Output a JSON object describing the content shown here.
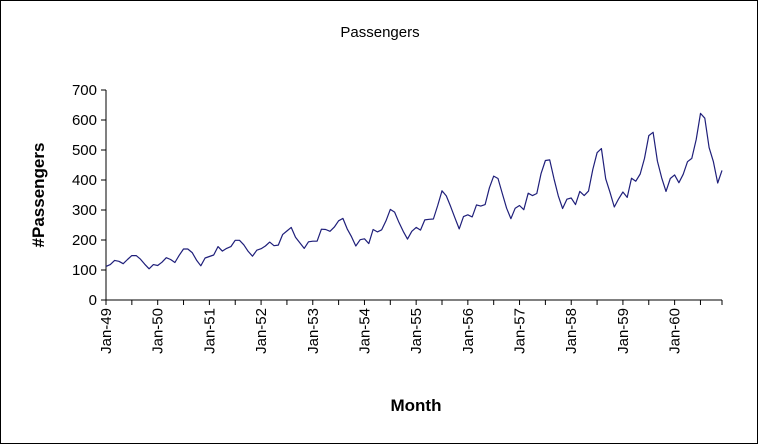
{
  "chart_data": {
    "type": "line",
    "title": "Passengers",
    "xlabel": "Month",
    "ylabel": "#Passengers",
    "ylim": [
      0,
      700
    ],
    "yticks": [
      0,
      100,
      200,
      300,
      400,
      500,
      600,
      700
    ],
    "xtick_labels": [
      "Jan-49",
      "Jan-50",
      "Jan-51",
      "Jan-52",
      "Jan-53",
      "Jan-54",
      "Jan-55",
      "Jan-56",
      "Jan-57",
      "Jan-58",
      "Jan-59",
      "Jan-60"
    ],
    "grid": false,
    "legend": "none",
    "line_color": "#1f1f7a",
    "series": [
      {
        "name": "Passengers",
        "values": [
          112,
          118,
          132,
          129,
          121,
          135,
          148,
          148,
          136,
          119,
          104,
          118,
          115,
          126,
          141,
          135,
          125,
          149,
          170,
          170,
          158,
          133,
          114,
          140,
          145,
          150,
          178,
          163,
          172,
          178,
          199,
          199,
          184,
          162,
          146,
          166,
          171,
          180,
          193,
          181,
          183,
          218,
          230,
          242,
          209,
          191,
          172,
          194,
          196,
          196,
          236,
          235,
          229,
          243,
          264,
          272,
          237,
          211,
          180,
          201,
          204,
          188,
          235,
          227,
          234,
          264,
          302,
          293,
          259,
          229,
          203,
          229,
          242,
          233,
          267,
          269,
          270,
          315,
          364,
          347,
          312,
          274,
          237,
          278,
          284,
          277,
          317,
          313,
          318,
          374,
          413,
          405,
          355,
          306,
          271,
          306,
          315,
          301,
          356,
          348,
          355,
          422,
          465,
          467,
          404,
          347,
          305,
          336,
          340,
          318,
          362,
          348,
          363,
          435,
          491,
          505,
          404,
          359,
          310,
          337,
          360,
          342,
          406,
          396,
          420,
          472,
          548,
          559,
          463,
          407,
          362,
          405,
          417,
          391,
          419,
          461,
          472,
          535,
          622,
          606,
          508,
          461,
          390,
          432
        ]
      }
    ]
  }
}
